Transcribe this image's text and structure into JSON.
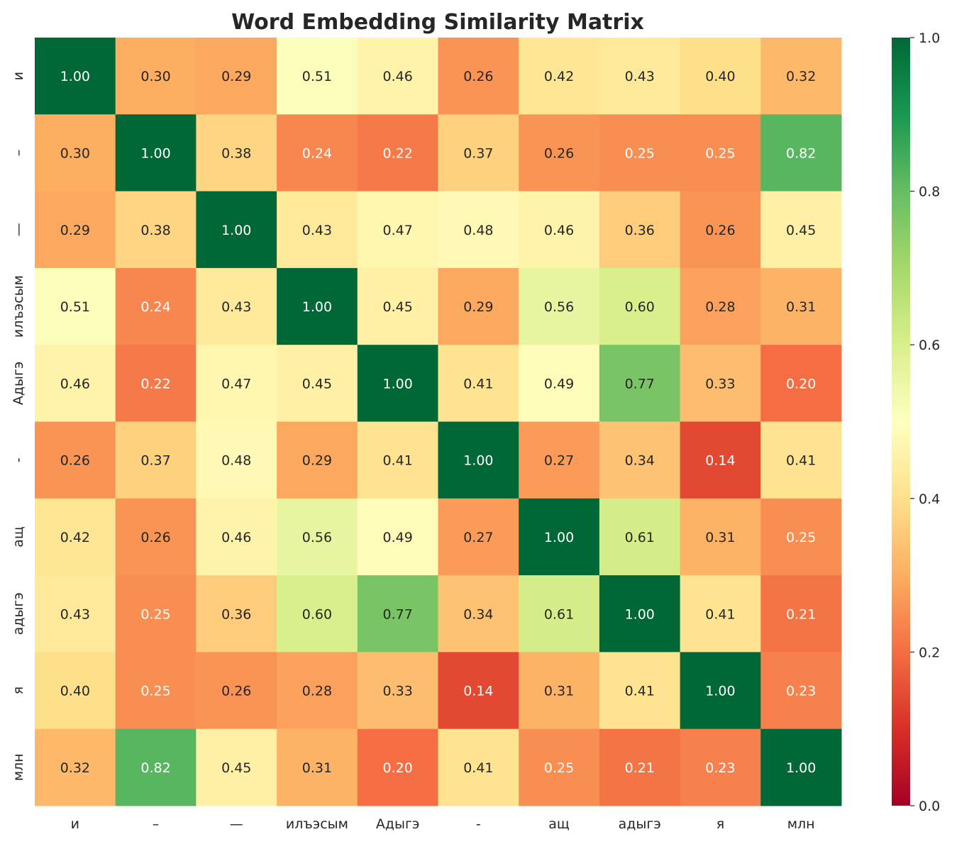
{
  "chart_data": {
    "type": "heatmap",
    "title": "Word Embedding Similarity Matrix",
    "xlabel": "",
    "ylabel": "",
    "row_labels": [
      "и",
      "–",
      "—",
      "илъэсым",
      "Адыгэ",
      "-",
      "ащ",
      "адыгэ",
      "я",
      "млн"
    ],
    "col_labels": [
      "и",
      "–",
      "—",
      "илъэсым",
      "Адыгэ",
      "-",
      "ащ",
      "адыгэ",
      "я",
      "млн"
    ],
    "values": [
      [
        1.0,
        0.3,
        0.29,
        0.51,
        0.46,
        0.26,
        0.42,
        0.43,
        0.4,
        0.32
      ],
      [
        0.3,
        1.0,
        0.38,
        0.24,
        0.22,
        0.37,
        0.26,
        0.25,
        0.25,
        0.82
      ],
      [
        0.29,
        0.38,
        1.0,
        0.43,
        0.47,
        0.48,
        0.46,
        0.36,
        0.26,
        0.45
      ],
      [
        0.51,
        0.24,
        0.43,
        1.0,
        0.45,
        0.29,
        0.56,
        0.6,
        0.28,
        0.31
      ],
      [
        0.46,
        0.22,
        0.47,
        0.45,
        1.0,
        0.41,
        0.49,
        0.77,
        0.33,
        0.2
      ],
      [
        0.26,
        0.37,
        0.48,
        0.29,
        0.41,
        1.0,
        0.27,
        0.34,
        0.14,
        0.41
      ],
      [
        0.42,
        0.26,
        0.46,
        0.56,
        0.49,
        0.27,
        1.0,
        0.61,
        0.31,
        0.25
      ],
      [
        0.43,
        0.25,
        0.36,
        0.6,
        0.77,
        0.34,
        0.61,
        1.0,
        0.41,
        0.21
      ],
      [
        0.4,
        0.25,
        0.26,
        0.28,
        0.33,
        0.14,
        0.31,
        0.41,
        1.0,
        0.23
      ],
      [
        0.32,
        0.82,
        0.45,
        0.31,
        0.2,
        0.41,
        0.25,
        0.21,
        0.23,
        1.0
      ]
    ],
    "value_format": "0.00",
    "colormap": "RdYlGn",
    "colormap_stops": [
      "#a50026",
      "#d73027",
      "#f46d43",
      "#fdae61",
      "#fee08b",
      "#ffffbf",
      "#d9ef8b",
      "#a6d96a",
      "#66bd63",
      "#1a9850",
      "#006837"
    ],
    "vmin": 0.0,
    "vmax": 1.0,
    "colorbar_ticks": [
      "0.0",
      "0.2",
      "0.4",
      "0.6",
      "0.8",
      "1.0"
    ],
    "colorbar_position": "right",
    "grid": false
  }
}
